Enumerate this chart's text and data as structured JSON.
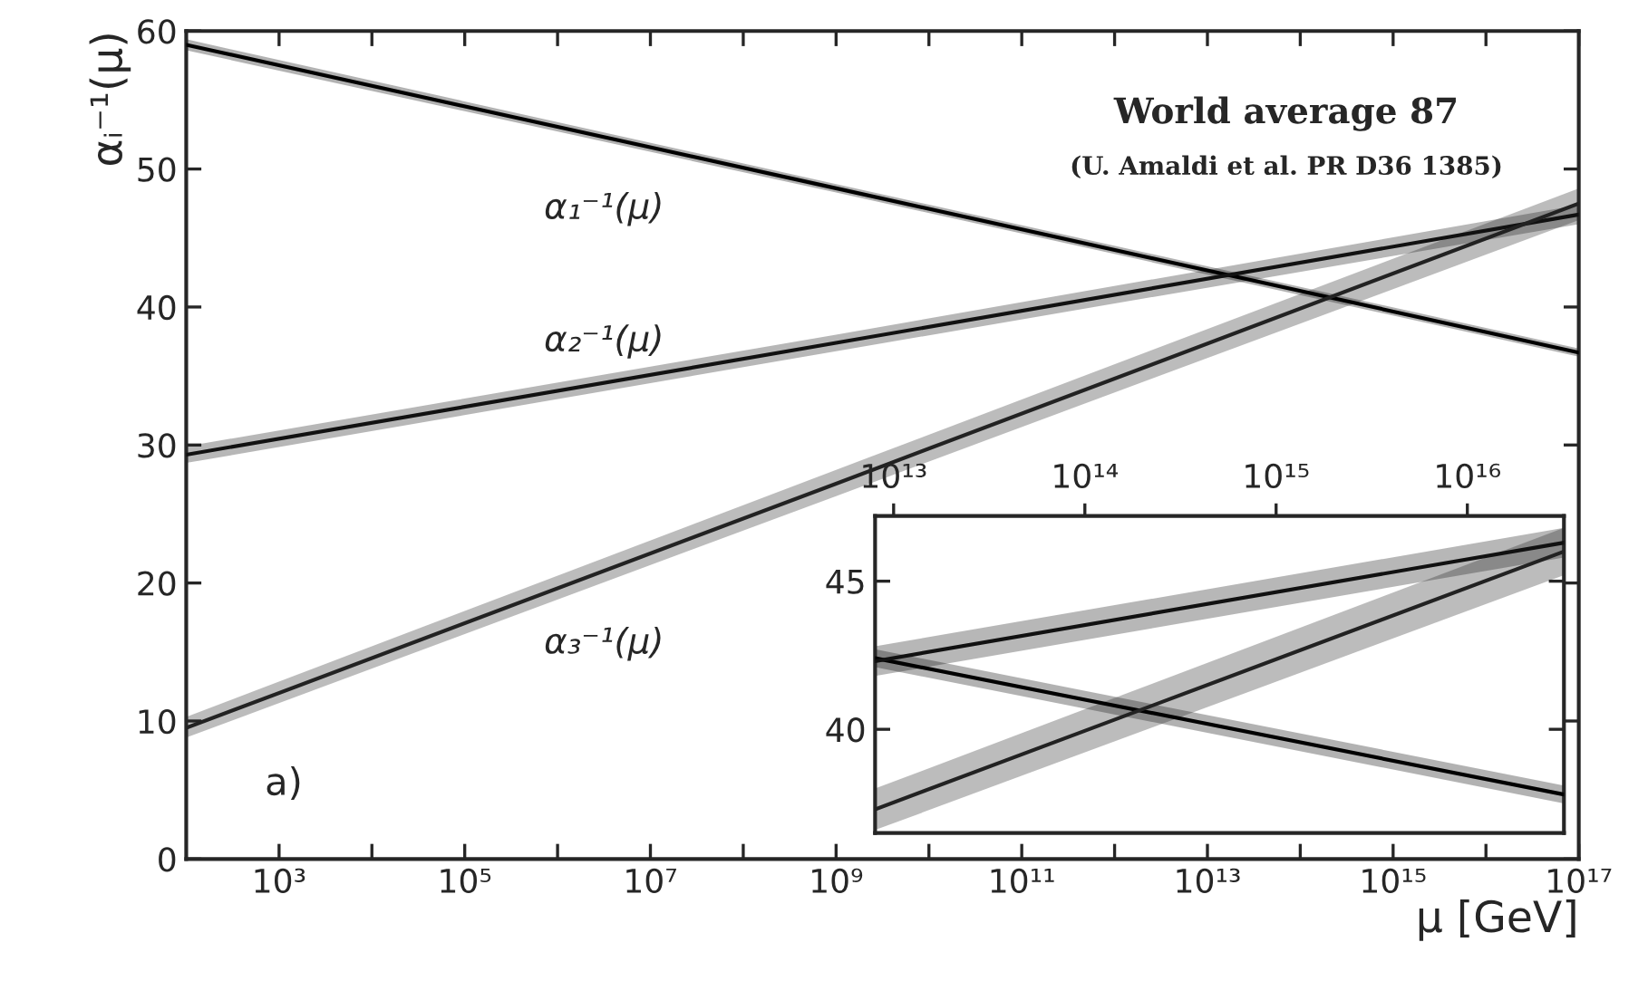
{
  "chart_data": [
    {
      "type": "line",
      "log": "x",
      "xlabel": "μ [GeV]",
      "ylabel": "αᵢ⁻¹(μ)",
      "grid": false,
      "legend": false,
      "xlim": [
        100,
        1e+17
      ],
      "ylim": [
        0,
        60
      ],
      "xticks": [
        {
          "value": 1000,
          "label": "10³"
        },
        {
          "value": 10000.0,
          "label": null
        },
        {
          "value": 100000.0,
          "label": "10⁵"
        },
        {
          "value": 1000000.0,
          "label": null
        },
        {
          "value": 10000000.0,
          "label": "10⁷"
        },
        {
          "value": 100000000.0,
          "label": null
        },
        {
          "value": 1000000000.0,
          "label": "10⁹"
        },
        {
          "value": 10000000000.0,
          "label": null
        },
        {
          "value": 100000000000.0,
          "label": "10¹¹"
        },
        {
          "value": 1000000000000.0,
          "label": null
        },
        {
          "value": 10000000000000.0,
          "label": "10¹³"
        },
        {
          "value": 100000000000000.0,
          "label": null
        },
        {
          "value": 1000000000000000.0,
          "label": "10¹⁵"
        },
        {
          "value": 1e+16,
          "label": null
        },
        {
          "value": 1e+17,
          "label": "10¹⁷"
        }
      ],
      "yticks": [
        0,
        10,
        20,
        30,
        40,
        50,
        60
      ],
      "series": [
        {
          "color": "#000000",
          "x": [
            100,
            1000000000.0,
            1e+17
          ],
          "values": [
            59.0,
            48.6,
            36.7
          ],
          "lower": [
            58.6,
            48.3,
            36.4
          ],
          "upper": [
            59.4,
            48.9,
            37.0
          ]
        },
        {
          "color": "#111111",
          "x": [
            100,
            1000000000.0,
            1e+17
          ],
          "values": [
            29.3,
            37.4,
            46.7
          ],
          "lower": [
            28.7,
            36.8,
            46.0
          ],
          "upper": [
            29.9,
            38.0,
            47.4
          ]
        },
        {
          "color": "#222222",
          "x": [
            100,
            1000000000.0,
            1e+17
          ],
          "values": [
            9.5,
            27.2,
            47.5
          ],
          "lower": [
            8.8,
            26.3,
            46.3
          ],
          "upper": [
            10.3,
            28.2,
            48.6
          ]
        }
      ],
      "annotations": [
        "World average 87",
        "(U. Amaldi et al. PR D36 1385)",
        "a)",
        "α₁⁻¹(μ)",
        "α₂⁻¹(μ)",
        "α₃⁻¹(μ)"
      ]
    },
    {
      "type": "line",
      "log": "x",
      "grid": false,
      "legend": false,
      "xlim": [
        8000000000000.0,
        3.2e+16
      ],
      "ylim": [
        36.5,
        47.2
      ],
      "xticks": [
        {
          "value": 10000000000000.0,
          "label": "10¹³"
        },
        {
          "value": 100000000000000.0,
          "label": "10¹⁴"
        },
        {
          "value": 1000000000000000.0,
          "label": "10¹⁵"
        },
        {
          "value": 1e+16,
          "label": "10¹⁶"
        }
      ],
      "yticks": [
        40,
        45
      ],
      "series": [
        {
          "color": "#000000",
          "x": [
            8000000000000.0,
            3.2e+16
          ],
          "values": [
            42.4,
            37.8
          ],
          "lower": [
            42.1,
            37.5
          ],
          "upper": [
            42.7,
            38.1
          ]
        },
        {
          "color": "#111111",
          "x": [
            8000000000000.0,
            3.2e+16
          ],
          "values": [
            42.3,
            46.3
          ],
          "lower": [
            41.8,
            45.8
          ],
          "upper": [
            42.8,
            46.8
          ]
        },
        {
          "color": "#222222",
          "x": [
            8000000000000.0,
            3.2e+16
          ],
          "values": [
            37.3,
            46.0
          ],
          "lower": [
            36.6,
            45.2
          ],
          "upper": [
            38.0,
            46.8
          ]
        }
      ]
    }
  ]
}
